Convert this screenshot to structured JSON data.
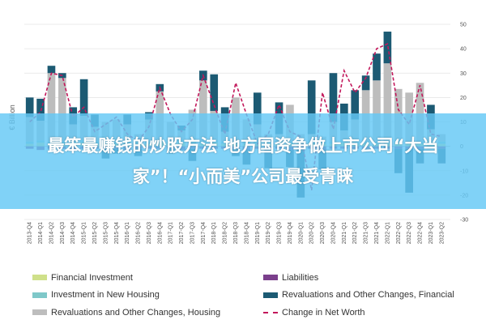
{
  "overlay": {
    "headline": "最笨最赚钱的炒股方法 地方国资争做上市公司“大当家”！“小而美”公司最受青睐"
  },
  "colors": {
    "financial_investment": "#cfe08a",
    "investment_new_housing": "#7fc8c9",
    "revaluations_housing": "#bdbdbd",
    "liabilities": "#7b3f8c",
    "revaluations_financial": "#1c5a73",
    "net_worth_line": "#c2185b"
  },
  "chart_data": {
    "type": "bar",
    "title": "",
    "xlabel": "",
    "ylabel": "€ Billion",
    "ylim": [
      -30,
      50
    ],
    "yticks": [
      -30,
      -20,
      -10,
      0,
      10,
      20,
      30,
      40,
      50
    ],
    "grid": true,
    "legend_position": "bottom",
    "categories": [
      "2013-Q4",
      "2014-Q1",
      "2014-Q2",
      "2014-Q3",
      "2014-Q4",
      "2015-Q1",
      "2015-Q2",
      "2015-Q3",
      "2015-Q4",
      "2016-Q1",
      "2016-Q2",
      "2016-Q3",
      "2016-Q4",
      "2017-Q1",
      "2017-Q2",
      "2017-Q3",
      "2017-Q4",
      "2018-Q1",
      "2018-Q2",
      "2018-Q3",
      "2018-Q4",
      "2019-Q1",
      "2019-Q2",
      "2019-Q3",
      "2019-Q4",
      "2020-Q1",
      "2020-Q2",
      "2020-Q3",
      "2020-Q4",
      "2021-Q1",
      "2021-Q2",
      "2021-Q3",
      "2021-Q4",
      "2022-Q1",
      "2022-Q2",
      "2022-Q3",
      "2022-Q4",
      "2023-Q1",
      "2023-Q2"
    ],
    "series": [
      {
        "name": "Financial Investment",
        "kind": "bar",
        "values": [
          1,
          1.5,
          1,
          1,
          1,
          1.5,
          1,
          1,
          1,
          1,
          1,
          1,
          1.5,
          1,
          1.5,
          1,
          1,
          1.5,
          1,
          1,
          1,
          1,
          1,
          1,
          1,
          1,
          1,
          1,
          1,
          1.5,
          1,
          1,
          1,
          1,
          1.5,
          1,
          1,
          1,
          1
        ]
      },
      {
        "name": "Investment in New Housing",
        "kind": "bar",
        "values": [
          1,
          1,
          1,
          1,
          1,
          1,
          1,
          1,
          1,
          1,
          1,
          1,
          1,
          1,
          1,
          1,
          1,
          1,
          1,
          1,
          1,
          1,
          1,
          1,
          1,
          1,
          1,
          1,
          1,
          1,
          1,
          1,
          1,
          1,
          1,
          1,
          1,
          1,
          1
        ]
      },
      {
        "name": "Revaluations and Other Changes, Housing",
        "kind": "bar",
        "values": [
          10,
          8,
          28,
          26,
          7,
          10,
          6,
          8,
          9,
          7,
          3,
          9,
          20,
          8,
          4,
          13,
          25,
          12,
          4,
          18,
          9,
          7,
          3,
          3,
          15,
          3,
          3,
          2,
          8,
          4,
          9,
          21,
          25,
          32,
          21,
          20,
          24,
          5,
          3
        ]
      },
      {
        "name": "Liabilities",
        "kind": "bar",
        "values": [
          -1,
          -1.5,
          -1,
          -1,
          -1.5,
          -1,
          -1,
          -1,
          -1,
          -1.5,
          -1,
          -1,
          -1,
          -1,
          -1.5,
          -1,
          -1,
          -1,
          -1,
          -1,
          -1.5,
          -1,
          -1,
          -1,
          -1.5,
          -1,
          -1,
          -1.5,
          -1,
          -1,
          -1,
          -1,
          -1,
          -1,
          -1,
          -1,
          -1,
          -1,
          -1
        ]
      },
      {
        "name": "Revaluations and Other Changes, Financial",
        "kind": "bar",
        "values": [
          8,
          9,
          3,
          2,
          7,
          15,
          5,
          -4,
          -2,
          4,
          -3,
          3,
          3,
          -2,
          2,
          -5,
          4,
          15,
          10,
          -3,
          -6,
          13,
          -8,
          13,
          -7,
          -20,
          22,
          -8,
          20,
          11,
          12,
          6,
          11,
          13,
          -10,
          -18,
          -6,
          10,
          -6
        ]
      },
      {
        "name": "Change in Net Worth",
        "kind": "line",
        "values": [
          10,
          14,
          30,
          29,
          12,
          16,
          6,
          9,
          12,
          5,
          2,
          8,
          24,
          13,
          6,
          11,
          29,
          17,
          5,
          26,
          13,
          1,
          5,
          17,
          6,
          4,
          -18,
          22,
          7,
          31,
          22,
          28,
          40,
          42,
          15,
          9,
          25,
          5,
          4
        ]
      }
    ]
  },
  "legend": {
    "items": [
      {
        "label": "Financial Investment",
        "key": "financial_investment",
        "style": "bar"
      },
      {
        "label": "Liabilities",
        "key": "liabilities",
        "style": "bar"
      },
      {
        "label": "Investment in New Housing",
        "key": "investment_new_housing",
        "style": "bar"
      },
      {
        "label": "Revaluations and Other Changes, Financial",
        "key": "revaluations_financial",
        "style": "bar"
      },
      {
        "label": "Revaluations and Other Changes, Housing",
        "key": "revaluations_housing",
        "style": "bar"
      },
      {
        "label": "Change in Net Worth",
        "key": "net_worth_line",
        "style": "dash"
      }
    ]
  }
}
